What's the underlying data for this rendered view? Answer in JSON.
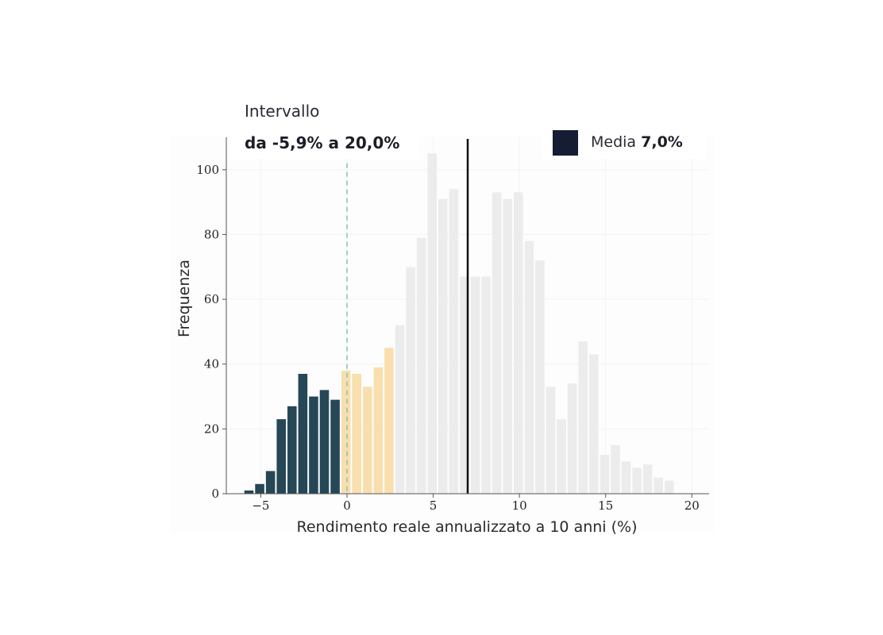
{
  "range_panel": {
    "title": "Intervallo",
    "value": "da -5,9% a 20,0%"
  },
  "legend": {
    "label": "Media",
    "value": "7,0%"
  },
  "colors": {
    "negative": "#254756",
    "low": "#f9dfae",
    "rest": "#ececec",
    "mean_line": "#111111",
    "zero_line": "#7fc3b1",
    "legend_swatch": "#141d33",
    "axis": "#555555",
    "grid": "#f3f3f3"
  },
  "chart_data": {
    "type": "bar",
    "title": "",
    "xlabel": "Rendimento reale annualizzato a 10 anni (%)",
    "ylabel": "Frequenza",
    "xlim": [
      -7,
      21
    ],
    "ylim": [
      0,
      110
    ],
    "xticks": [
      {
        "value": -5,
        "label": "−5"
      },
      {
        "value": 0,
        "label": "0"
      },
      {
        "value": 5,
        "label": "5"
      },
      {
        "value": 10,
        "label": "10"
      },
      {
        "value": 15,
        "label": "15"
      },
      {
        "value": 20,
        "label": "20"
      }
    ],
    "yticks": [
      0,
      20,
      40,
      60,
      80,
      100
    ],
    "bin_width": 0.625,
    "bin_start": -6.0,
    "counts": [
      1,
      3,
      7,
      23,
      27,
      37,
      30,
      32,
      29,
      38,
      37,
      33,
      39,
      45,
      52,
      70,
      79,
      105,
      91,
      94,
      67,
      67,
      67,
      93,
      91,
      93,
      78,
      72,
      33,
      23,
      34,
      47,
      43,
      12,
      15,
      10,
      8,
      9,
      5,
      4
    ],
    "bin_groups": [
      "negative",
      "negative",
      "negative",
      "negative",
      "negative",
      "negative",
      "negative",
      "negative",
      "negative",
      "low",
      "low",
      "low",
      "low",
      "low",
      "rest",
      "rest",
      "rest",
      "rest",
      "rest",
      "rest",
      "rest",
      "rest",
      "rest",
      "rest",
      "rest",
      "rest",
      "rest",
      "rest",
      "rest",
      "rest",
      "rest",
      "rest",
      "rest",
      "rest",
      "rest",
      "rest",
      "rest",
      "rest",
      "rest",
      "rest"
    ],
    "mean": 7.0,
    "zero_reference": 0,
    "grid": true
  }
}
